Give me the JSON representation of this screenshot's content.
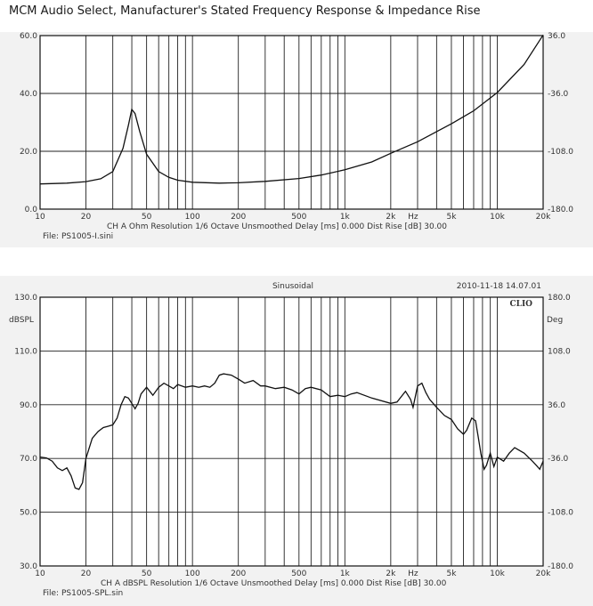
{
  "page": {
    "title": "MCM Audio Select, Manufacturer's Stated Frequency Response & Impedance Rise"
  },
  "chart_data": [
    {
      "type": "line",
      "name": "impedance",
      "xscale": "log",
      "xlim": [
        10,
        20000
      ],
      "ylim_left": [
        0,
        60
      ],
      "ylim_right": [
        -180,
        36
      ],
      "y_ticks_left": [
        "0.0",
        "20.0",
        "40.0",
        "60.0"
      ],
      "y_ticks_right": [
        "-180.0",
        "-108.0",
        "-36.0",
        "36.0"
      ],
      "x_ticks": [
        "10",
        "20",
        "50",
        "100",
        "200",
        "500",
        "1k",
        "2k",
        "Hz",
        "5k",
        "10k",
        "20k"
      ],
      "grid": true,
      "info_line": "CH A   Ohm   Resolution 1/6 Octave   Unsmoothed   Delay [ms] 0.000   Dist Rise [dB] 30.00",
      "file_label": "File: PS1005-I.sini",
      "x": [
        10,
        15,
        20,
        25,
        30,
        35,
        38,
        40,
        42,
        45,
        50,
        60,
        70,
        80,
        100,
        150,
        200,
        300,
        500,
        700,
        1000,
        1500,
        2000,
        3000,
        5000,
        7000,
        10000,
        15000,
        20000
      ],
      "y": [
        8.7,
        9.0,
        9.5,
        10.5,
        13.0,
        21.0,
        29.0,
        34.5,
        33.0,
        27.0,
        19.0,
        13.0,
        11.0,
        10.0,
        9.3,
        9.0,
        9.1,
        9.6,
        10.6,
        11.8,
        13.6,
        16.3,
        19.3,
        23.3,
        29.5,
        34.0,
        40.3,
        50.0,
        60.2
      ]
    },
    {
      "type": "line",
      "name": "spl",
      "xscale": "log",
      "xlim": [
        10,
        20000
      ],
      "ylim_left": [
        30,
        130
      ],
      "ylim_right": [
        -180,
        180
      ],
      "y_ticks_left": [
        "30.0",
        "50.0",
        "70.0",
        "90.0",
        "110.0",
        "130.0"
      ],
      "y_ticks_right": [
        "-180.0",
        "-108.0",
        "-36.0",
        "36.0",
        "108.0",
        "180.0"
      ],
      "y_unit_left": "dBSPL",
      "y_unit_right": "Deg",
      "x_ticks": [
        "10",
        "20",
        "50",
        "100",
        "200",
        "500",
        "1k",
        "2k",
        "Hz",
        "5k",
        "10k",
        "20k"
      ],
      "grid": true,
      "header_center": "Sinusoidal",
      "header_right": "2010-11-18 14.07.01",
      "brand": "CLIO",
      "info_line": "CH A   dBSPL   Resolution 1/6 Octave   Unsmoothed   Delay [ms] 0.000   Dist Rise [dB] 30.00",
      "file_label": "File: PS1005-SPL.sin",
      "x": [
        10,
        11,
        12,
        13,
        14,
        15,
        16,
        17,
        18,
        19,
        20,
        22,
        24,
        26,
        28,
        30,
        32,
        34,
        36,
        38,
        40,
        42,
        44,
        46,
        50,
        55,
        60,
        65,
        70,
        75,
        80,
        90,
        100,
        110,
        120,
        130,
        140,
        150,
        160,
        180,
        200,
        220,
        250,
        280,
        300,
        350,
        400,
        450,
        500,
        550,
        600,
        700,
        800,
        900,
        1000,
        1100,
        1200,
        1500,
        2000,
        2200,
        2500,
        2700,
        2800,
        3000,
        3200,
        3400,
        3600,
        4000,
        4500,
        5000,
        5500,
        6000,
        6300,
        6800,
        7200,
        7500,
        7800,
        8200,
        8500,
        9000,
        9500,
        10000,
        11000,
        12000,
        13000,
        15000,
        17000,
        18000,
        19000,
        20000
      ],
      "y": [
        70.5,
        70.2,
        69.0,
        66.5,
        65.5,
        66.5,
        63.5,
        59.0,
        58.5,
        61.0,
        70.0,
        77.5,
        80.0,
        81.5,
        82.0,
        82.5,
        85.0,
        90.0,
        93.0,
        92.5,
        90.5,
        88.5,
        90.5,
        94.0,
        96.5,
        93.5,
        96.5,
        98.0,
        97.0,
        96.0,
        97.5,
        96.5,
        97.0,
        96.5,
        97.0,
        96.5,
        98.0,
        101.0,
        101.5,
        101.0,
        99.5,
        98.0,
        99.0,
        97.0,
        97.0,
        96.0,
        96.5,
        95.5,
        94.0,
        96.0,
        96.5,
        95.5,
        93.0,
        93.5,
        93.0,
        94.0,
        94.5,
        92.5,
        90.5,
        91.0,
        95.0,
        92.0,
        89.0,
        97.0,
        98.0,
        94.5,
        92.0,
        89.0,
        86.0,
        84.5,
        81.0,
        79.0,
        80.5,
        85.0,
        84.0,
        78.0,
        72.0,
        66.0,
        67.5,
        72.0,
        67.0,
        70.5,
        69.0,
        72.0,
        74.0,
        72.0,
        69.0,
        67.5,
        66.0,
        69.0
      ]
    }
  ]
}
